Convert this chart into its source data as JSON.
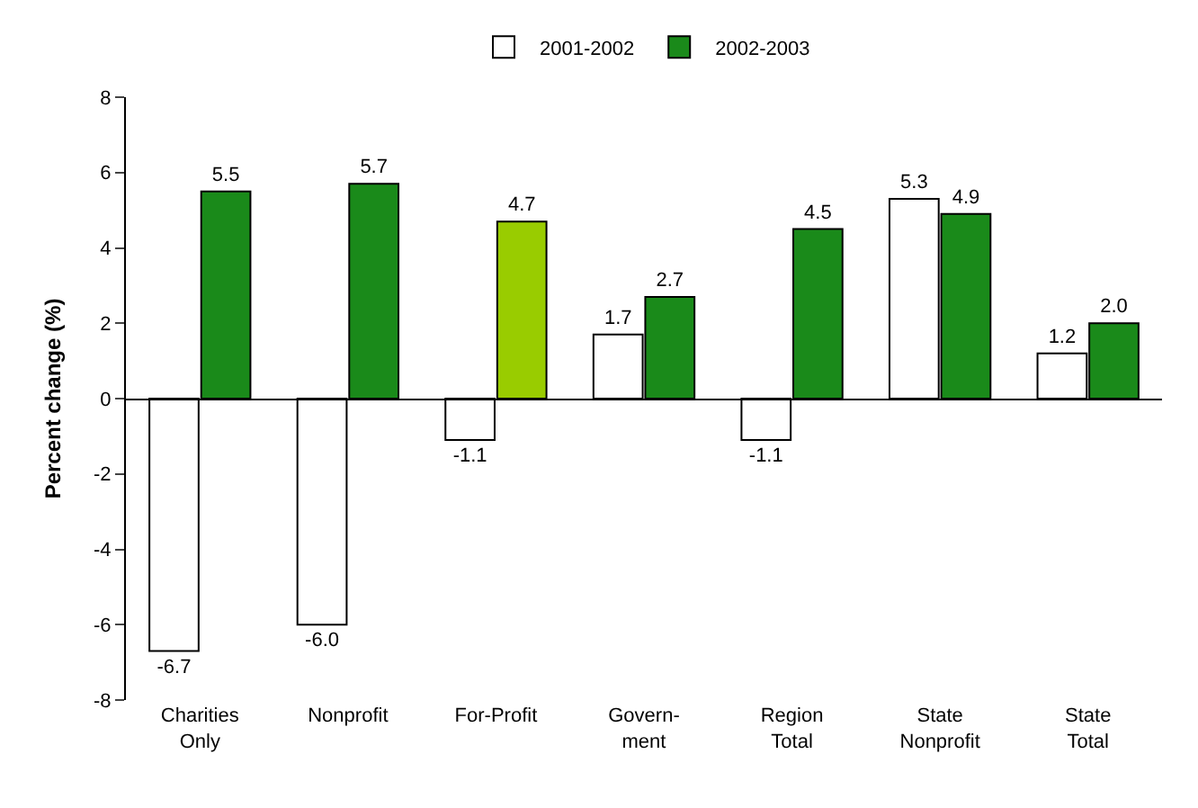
{
  "chart_data": {
    "type": "bar",
    "ylabel": "Percent change (%)",
    "categories": [
      "Charities\nOnly",
      "Nonprofit",
      "For-Profit",
      "Govern-\nment",
      "Region\nTotal",
      "State\nNonprofit",
      "State\nTotal"
    ],
    "series": [
      {
        "name": "2001-2002",
        "color": "#ffffff",
        "values": [
          -6.7,
          -6.0,
          -1.1,
          1.7,
          -1.1,
          5.3,
          1.2
        ],
        "value_labels": [
          "-6.7",
          "-6.0",
          "-1.1",
          "1.7",
          "-1.1",
          "5.3",
          "1.2"
        ]
      },
      {
        "name": "2002-2003",
        "color": "#1a8a1a",
        "colors": [
          "#1a8a1a",
          "#1a8a1a",
          "#99cc00",
          "#1a8a1a",
          "#1a8a1a",
          "#1a8a1a",
          "#1a8a1a"
        ],
        "values": [
          5.5,
          5.7,
          4.7,
          2.7,
          4.5,
          4.9,
          2.0
        ],
        "value_labels": [
          "5.5",
          "5.7",
          "4.7",
          "2.7",
          "4.5",
          "4.9",
          "2.0"
        ]
      }
    ],
    "ylim": [
      -8,
      8
    ],
    "yticks": [
      -8,
      -6,
      -4,
      -2,
      0,
      2,
      4,
      6,
      8
    ],
    "legend": "top"
  }
}
